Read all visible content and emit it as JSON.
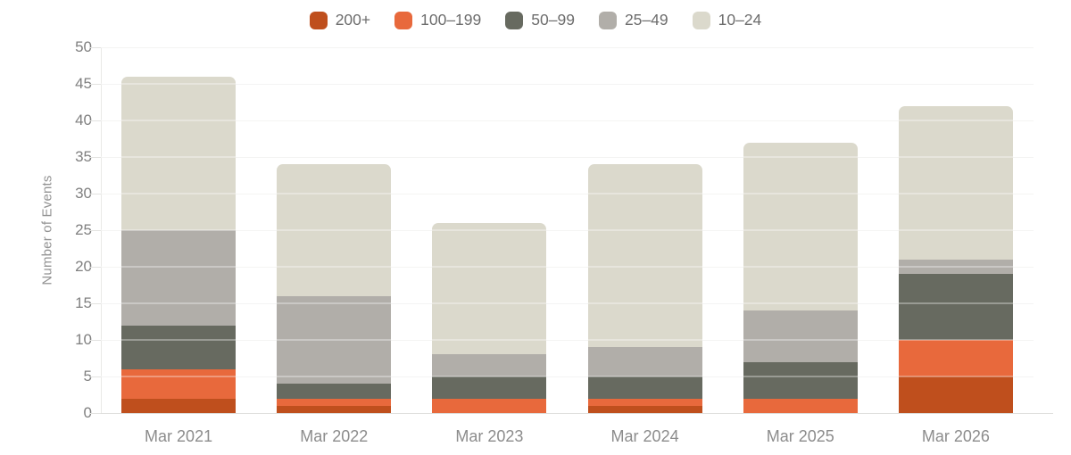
{
  "chart_data": {
    "type": "bar",
    "stacked": true,
    "title": "",
    "xlabel": "",
    "ylabel": "Number of Events",
    "categories": [
      "Mar 2021",
      "Mar 2022",
      "Mar 2023",
      "Mar 2024",
      "Mar 2025",
      "Mar 2026"
    ],
    "series": [
      {
        "name": "200+",
        "color": "#bf4f1d",
        "values": [
          2,
          1,
          0,
          1,
          0,
          5
        ]
      },
      {
        "name": "100–199",
        "color": "#e8693c",
        "values": [
          4,
          1,
          2,
          1,
          2,
          5
        ]
      },
      {
        "name": "50–99",
        "color": "#676a60",
        "values": [
          6,
          2,
          3,
          3,
          5,
          9
        ]
      },
      {
        "name": "25–49",
        "color": "#b1aea9",
        "values": [
          13,
          12,
          3,
          4,
          7,
          2
        ]
      },
      {
        "name": "10–24",
        "color": "#dbd9cc",
        "values": [
          21,
          18,
          18,
          25,
          23,
          21
        ]
      }
    ],
    "stack_totals": [
      46,
      34,
      26,
      34,
      37,
      42
    ],
    "ylim": [
      0,
      50
    ],
    "yticks": [
      0,
      5,
      10,
      15,
      20,
      25,
      30,
      35,
      40,
      45,
      50
    ],
    "grid": true,
    "legend_position": "top"
  },
  "colors": {
    "background": "#ffffff",
    "gridline": "#efefed",
    "axis_line": "#e9e9e7",
    "tick_text": "#7f7f7f",
    "x_label_text": "#8c8c8c",
    "legend_text": "#6d6d6d",
    "y_axis_title_text": "#939393"
  }
}
